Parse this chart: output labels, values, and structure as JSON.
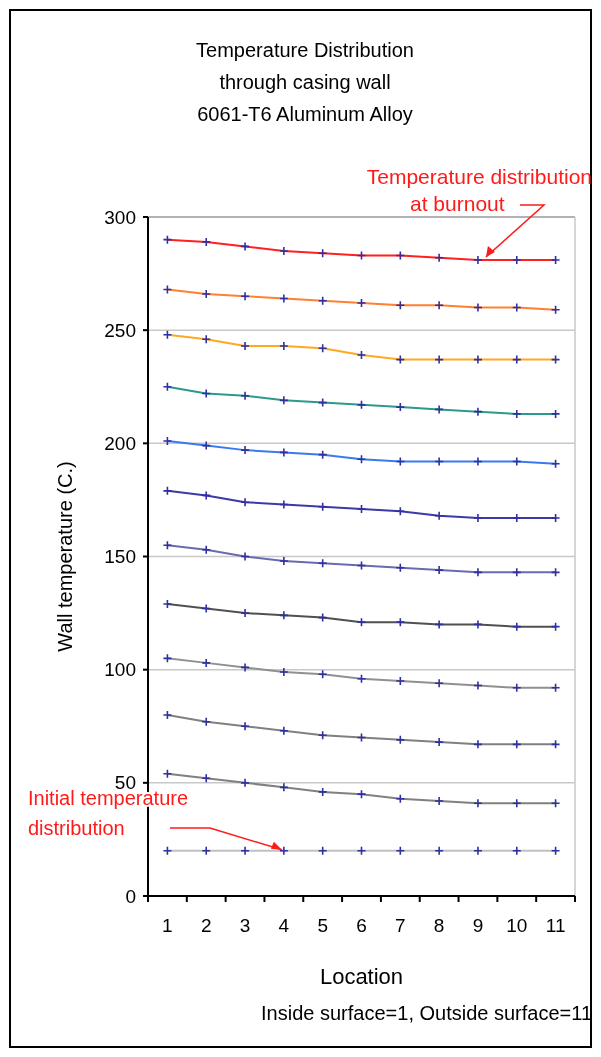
{
  "chart_data": {
    "type": "line",
    "title": "Temperature Distribution\nthrough casing wall\n6061-T6 Aluminum Alloy",
    "xlabel": "Location",
    "ylabel": "Wall temperature  (C.)",
    "categories": [
      "1",
      "2",
      "3",
      "4",
      "5",
      "6",
      "7",
      "8",
      "9",
      "10",
      "11"
    ],
    "ylim": [
      0,
      300
    ],
    "yticks": [
      0,
      50,
      100,
      150,
      200,
      250,
      300
    ],
    "grid": "y",
    "marker": "cross",
    "line_style": "solid",
    "series": [
      {
        "color": "#ff2020",
        "values": [
          290,
          289,
          287,
          285,
          284,
          283,
          283,
          282,
          281,
          281,
          281
        ]
      },
      {
        "color": "#ff8030",
        "values": [
          268,
          266,
          265,
          264,
          263,
          262,
          261,
          261,
          260,
          260,
          259
        ]
      },
      {
        "color": "#ffa820",
        "values": [
          248,
          246,
          243,
          243,
          242,
          239,
          237,
          237,
          237,
          237,
          237
        ]
      },
      {
        "color": "#2a9a8a",
        "values": [
          225,
          222,
          221,
          219,
          218,
          217,
          216,
          215,
          214,
          213,
          213
        ]
      },
      {
        "color": "#3a7af0",
        "values": [
          201,
          199,
          197,
          196,
          195,
          193,
          192,
          192,
          192,
          192,
          191
        ]
      },
      {
        "color": "#3a3aa8",
        "values": [
          179,
          177,
          174,
          173,
          172,
          171,
          170,
          168,
          167,
          167,
          167
        ]
      },
      {
        "color": "#6a6ab0",
        "values": [
          155,
          153,
          150,
          148,
          147,
          146,
          145,
          144,
          143,
          143,
          143
        ]
      },
      {
        "color": "#505050",
        "values": [
          129,
          127,
          125,
          124,
          123,
          121,
          121,
          120,
          120,
          119,
          119
        ]
      },
      {
        "color": "#909090",
        "values": [
          105,
          103,
          101,
          99,
          98,
          96,
          95,
          94,
          93,
          92,
          92
        ]
      },
      {
        "color": "#808080",
        "values": [
          80,
          77,
          75,
          73,
          71,
          70,
          69,
          68,
          67,
          67,
          67
        ]
      },
      {
        "color": "#808080",
        "values": [
          54,
          52,
          50,
          48,
          46,
          45,
          43,
          42,
          41,
          41,
          41
        ]
      },
      {
        "color": "#c0c0c0",
        "values": [
          20,
          20,
          20,
          20,
          20,
          20,
          20,
          20,
          20,
          20,
          20
        ]
      }
    ],
    "annotations": [
      {
        "text": "Temperature distribution\nat burnout",
        "x": "9",
        "y": 281
      },
      {
        "text": "Initial temperature\ndistribution",
        "x": "4",
        "y": 20
      },
      "Inside surface=1, Outside surface=11"
    ]
  }
}
